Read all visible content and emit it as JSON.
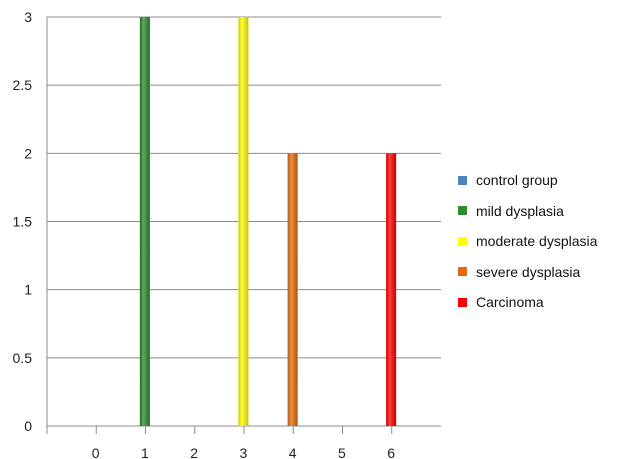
{
  "chart_data": {
    "type": "bar",
    "x": [
      0,
      1,
      2,
      3,
      4,
      5,
      6
    ],
    "ylim": [
      0,
      3
    ],
    "yticks": [
      "0",
      "0.5",
      "1",
      "1.5",
      "2",
      "2.5",
      "3"
    ],
    "xticks": [
      "0",
      "1",
      "2",
      "3",
      "4",
      "5",
      "6"
    ],
    "grid": true,
    "legend_position": "right",
    "series": [
      {
        "name": "control group",
        "color": "#4f81bd",
        "x": 1,
        "value": 0
      },
      {
        "name": "mild dysplasia",
        "color": "#2e8b2e",
        "x": 1,
        "value": 3
      },
      {
        "name": "moderate dysplasia",
        "color": "#ffff00",
        "x": 3,
        "value": 3
      },
      {
        "name": "severe dysplasia",
        "color": "#e46c0a",
        "x": 4,
        "value": 2
      },
      {
        "name": "Carcinoma",
        "color": "#ff0000",
        "x": 6,
        "value": 2
      }
    ]
  }
}
